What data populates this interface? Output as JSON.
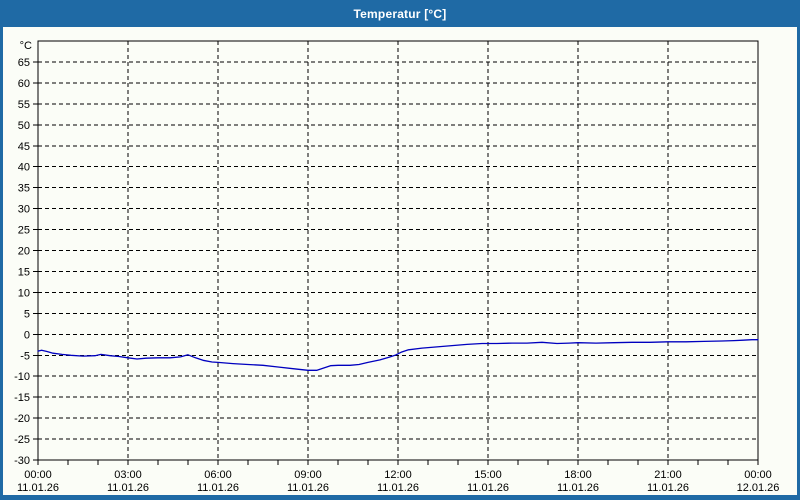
{
  "window": {
    "title": "Temperatur [°C]"
  },
  "colors": {
    "titlebar": "#1f6aa5",
    "window_border": "#1f6aa5",
    "background": "#fbfdf7",
    "frame": "#000000",
    "grid": "#000000",
    "line": "#0000bf",
    "tick_label": "#000000",
    "date_label": "#001133",
    "title_text": "#ffffff"
  },
  "chart_data": {
    "type": "line",
    "title": "Temperatur [°C]",
    "y_unit": "°C",
    "ylim": [
      -30,
      70
    ],
    "xlim_hours": [
      0,
      24
    ],
    "grid": "dashed",
    "legend": "none",
    "y_tick_labels": [
      65,
      60,
      55,
      50,
      45,
      40,
      35,
      30,
      25,
      20,
      15,
      10,
      5,
      0,
      -5,
      -10,
      -15,
      -20,
      -25,
      -30
    ],
    "x_minor_step_hours": 1,
    "x_major_ticks": [
      {
        "hour": 0,
        "time": "00:00",
        "date": "11.01.26"
      },
      {
        "hour": 3,
        "time": "03:00",
        "date": "11.01.26"
      },
      {
        "hour": 6,
        "time": "06:00",
        "date": "11.01.26"
      },
      {
        "hour": 9,
        "time": "09:00",
        "date": "11.01.26"
      },
      {
        "hour": 12,
        "time": "12:00",
        "date": "11.01.26"
      },
      {
        "hour": 15,
        "time": "15:00",
        "date": "11.01.26"
      },
      {
        "hour": 18,
        "time": "18:00",
        "date": "11.01.26"
      },
      {
        "hour": 21,
        "time": "21:00",
        "date": "11.01.26"
      },
      {
        "hour": 24,
        "time": "00:00",
        "date": "12.01.26"
      }
    ],
    "series": [
      {
        "name": "Temperatur",
        "color": "#0000bf",
        "points": [
          [
            0.0,
            -4.0
          ],
          [
            0.12,
            -3.8
          ],
          [
            0.3,
            -4.1
          ],
          [
            0.5,
            -4.5
          ],
          [
            0.8,
            -4.8
          ],
          [
            1.1,
            -5.0
          ],
          [
            1.5,
            -5.2
          ],
          [
            1.9,
            -5.1
          ],
          [
            2.1,
            -4.8
          ],
          [
            2.4,
            -5.1
          ],
          [
            2.7,
            -5.3
          ],
          [
            3.0,
            -5.6
          ],
          [
            3.3,
            -5.9
          ],
          [
            3.6,
            -5.7
          ],
          [
            4.0,
            -5.6
          ],
          [
            4.4,
            -5.6
          ],
          [
            4.75,
            -5.4
          ],
          [
            5.0,
            -4.9
          ],
          [
            5.25,
            -5.6
          ],
          [
            5.5,
            -6.2
          ],
          [
            5.8,
            -6.6
          ],
          [
            6.0,
            -6.7
          ],
          [
            6.5,
            -7.0
          ],
          [
            7.0,
            -7.2
          ],
          [
            7.5,
            -7.4
          ],
          [
            8.0,
            -7.8
          ],
          [
            8.5,
            -8.2
          ],
          [
            9.0,
            -8.6
          ],
          [
            9.3,
            -8.6
          ],
          [
            9.55,
            -8.0
          ],
          [
            9.75,
            -7.5
          ],
          [
            10.0,
            -7.4
          ],
          [
            10.4,
            -7.4
          ],
          [
            10.7,
            -7.2
          ],
          [
            11.0,
            -6.7
          ],
          [
            11.4,
            -6.1
          ],
          [
            11.7,
            -5.5
          ],
          [
            11.9,
            -5.0
          ],
          [
            12.1,
            -4.3
          ],
          [
            12.35,
            -3.7
          ],
          [
            12.8,
            -3.3
          ],
          [
            13.3,
            -3.0
          ],
          [
            13.8,
            -2.7
          ],
          [
            14.3,
            -2.4
          ],
          [
            14.8,
            -2.2
          ],
          [
            15.3,
            -2.2
          ],
          [
            15.8,
            -2.1
          ],
          [
            16.3,
            -2.1
          ],
          [
            16.8,
            -1.9
          ],
          [
            17.3,
            -2.2
          ],
          [
            17.7,
            -2.1
          ],
          [
            18.0,
            -2.0
          ],
          [
            18.6,
            -2.1
          ],
          [
            19.2,
            -2.0
          ],
          [
            19.8,
            -1.9
          ],
          [
            20.4,
            -1.9
          ],
          [
            21.0,
            -1.8
          ],
          [
            21.6,
            -1.8
          ],
          [
            22.2,
            -1.7
          ],
          [
            22.8,
            -1.6
          ],
          [
            23.2,
            -1.5
          ],
          [
            23.5,
            -1.4
          ],
          [
            23.8,
            -1.3
          ],
          [
            24.0,
            -1.3
          ]
        ]
      }
    ]
  }
}
